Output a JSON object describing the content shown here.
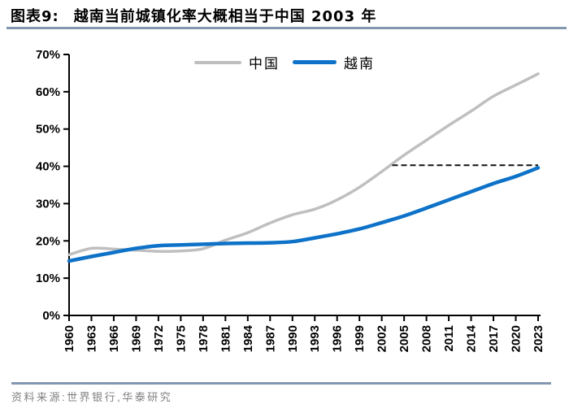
{
  "header": {
    "figure_label": "图表9:",
    "title": "越南当前城镇化率大概相当于中国 2003 年"
  },
  "footer": {
    "source_note": "资料来源:世界银行,华泰研究"
  },
  "colors": {
    "divider": "#8497B0",
    "axis": "#000000",
    "china_line": "#BFBFBF",
    "vietnam_line": "#0D72C8",
    "reference_dash": "#111111",
    "source_text": "#808080"
  },
  "chart_data": {
    "type": "line",
    "title": "越南当前城镇化率大概相当于中国 2003 年",
    "legend_position": "top-center",
    "grid": false,
    "xlim": [
      1960,
      2023
    ],
    "ylim": [
      0,
      70
    ],
    "ytick_labels": [
      "0%",
      "10%",
      "20%",
      "30%",
      "40%",
      "50%",
      "60%",
      "70%"
    ],
    "x": [
      1960,
      1963,
      1966,
      1969,
      1972,
      1975,
      1978,
      1981,
      1984,
      1987,
      1990,
      1993,
      1996,
      1999,
      2002,
      2005,
      2008,
      2011,
      2014,
      2017,
      2020,
      2023
    ],
    "series": [
      {
        "name": "中国",
        "color": "#BFBFBF",
        "values": [
          16.3,
          18.0,
          17.8,
          17.5,
          17.2,
          17.3,
          17.9,
          20.2,
          22.2,
          24.8,
          27.0,
          28.5,
          31.0,
          34.4,
          38.6,
          43.0,
          47.0,
          51.0,
          54.8,
          58.8,
          61.8,
          64.8
        ]
      },
      {
        "name": "越南",
        "color": "#0D72C8",
        "values": [
          14.6,
          15.8,
          16.9,
          18.0,
          18.7,
          18.9,
          19.1,
          19.3,
          19.4,
          19.5,
          19.8,
          20.8,
          21.9,
          23.2,
          24.9,
          26.7,
          28.8,
          31.0,
          33.2,
          35.4,
          37.3,
          39.6
        ]
      }
    ],
    "reference_line": {
      "style": "dashed-horizontal",
      "y": 40.3,
      "x_start": 2003.4,
      "x_end": 2023
    }
  }
}
